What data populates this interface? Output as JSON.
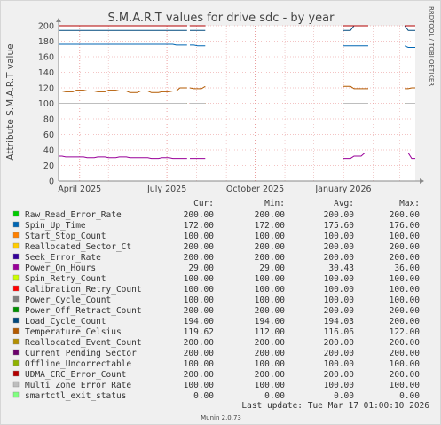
{
  "side_label": "RRDTOOL / TOBI OETIKER",
  "footer": "Munin 2.0.73",
  "last_update": "Last update: Tue Mar 17 01:00:10 2026",
  "colors": {
    "bg": "#f0f0f0",
    "plot": "#ffffff",
    "grid": "#e88a8a",
    "axis": "#8a8a8a"
  },
  "legend_headers": [
    "Cur:",
    "Min:",
    "Avg:",
    "Max:"
  ],
  "chart_data": {
    "type": "line",
    "title": "S.M.A.R.T values for drive sdc - by year",
    "ylabel": "Attribute S.M.A.R.T value",
    "xlabel": "",
    "ylim": [
      0,
      200
    ],
    "yticks": [
      0,
      20,
      40,
      60,
      80,
      100,
      120,
      140,
      160,
      180,
      200
    ],
    "xlim": [
      "2025-03-10",
      "2026-03-17"
    ],
    "xticks": [
      {
        "date": "2025-04-01",
        "label": "April 2025"
      },
      {
        "date": "2025-07-01",
        "label": "July 2025"
      },
      {
        "date": "2025-10-01",
        "label": "October 2025"
      },
      {
        "date": "2026-01-01",
        "label": "January 2026"
      }
    ],
    "data_segments": [
      [
        "2025-03-10",
        "2025-07-22"
      ],
      [
        "2025-07-25",
        "2025-08-10"
      ],
      [
        "2026-01-01",
        "2026-01-27"
      ],
      [
        "2026-03-06",
        "2026-03-17"
      ]
    ],
    "grid": true,
    "series": [
      {
        "name": "Raw_Read_Error_Rate",
        "color": "#00cc00",
        "cur": "200.00",
        "min": "200.00",
        "avg": "200.00",
        "max": "200.00",
        "values": [
          200,
          200
        ]
      },
      {
        "name": "Spin_Up_Time",
        "color": "#0066b3",
        "cur": "172.00",
        "min": "172.00",
        "avg": "175.60",
        "max": "176.00",
        "values": [
          176,
          176,
          176,
          176,
          176,
          176,
          176,
          175,
          174,
          174,
          172
        ]
      },
      {
        "name": "Start_Stop_Count",
        "color": "#ff8000",
        "cur": "100.00",
        "min": "100.00",
        "avg": "100.00",
        "max": "100.00",
        "values": [
          100,
          100
        ]
      },
      {
        "name": "Reallocated_Sector_Ct",
        "color": "#ffcc00",
        "cur": "200.00",
        "min": "200.00",
        "avg": "200.00",
        "max": "200.00",
        "values": [
          200,
          200
        ]
      },
      {
        "name": "Seek_Error_Rate",
        "color": "#330099",
        "cur": "200.00",
        "min": "200.00",
        "avg": "200.00",
        "max": "200.00",
        "values": [
          200,
          200
        ]
      },
      {
        "name": "Power_On_Hours",
        "color": "#990099",
        "cur": "29.00",
        "min": "29.00",
        "avg": "30.43",
        "max": "36.00",
        "values": [
          32,
          31,
          31,
          30,
          31,
          30,
          31,
          30,
          30,
          29,
          30,
          29,
          29,
          29,
          29,
          32,
          36,
          29
        ]
      },
      {
        "name": "Spin_Retry_Count",
        "color": "#ccff00",
        "cur": "100.00",
        "min": "100.00",
        "avg": "100.00",
        "max": "100.00",
        "values": [
          100,
          100
        ]
      },
      {
        "name": "Calibration_Retry_Count",
        "color": "#ff0000",
        "cur": "100.00",
        "min": "100.00",
        "avg": "100.00",
        "max": "100.00",
        "values": [
          100,
          100
        ]
      },
      {
        "name": "Power_Cycle_Count",
        "color": "#808080",
        "cur": "100.00",
        "min": "100.00",
        "avg": "100.00",
        "max": "100.00",
        "values": [
          100,
          100
        ]
      },
      {
        "name": "Power_Off_Retract_Count",
        "color": "#008f00",
        "cur": "200.00",
        "min": "200.00",
        "avg": "200.00",
        "max": "200.00",
        "values": [
          200,
          200
        ]
      },
      {
        "name": "Load_Cycle_Count",
        "color": "#00487d",
        "cur": "194.00",
        "min": "194.00",
        "avg": "194.03",
        "max": "200.00",
        "values": [
          194,
          194,
          194,
          194,
          194,
          194,
          194,
          194,
          194,
          200,
          194
        ]
      },
      {
        "name": "Temperature_Celsius",
        "color": "#b35a00",
        "cur": "119.62",
        "min": "112.00",
        "avg": "116.06",
        "max": "122.00",
        "values": [
          116,
          115,
          117,
          116,
          115,
          117,
          116,
          114,
          116,
          114,
          115,
          116,
          120,
          119,
          122,
          119,
          119,
          120
        ]
      },
      {
        "name": "Reallocated_Event_Count",
        "color": "#b38f00",
        "cur": "200.00",
        "min": "200.00",
        "avg": "200.00",
        "max": "200.00",
        "values": [
          200,
          200
        ]
      },
      {
        "name": "Current_Pending_Sector",
        "color": "#6b006b",
        "cur": "200.00",
        "min": "200.00",
        "avg": "200.00",
        "max": "200.00",
        "values": [
          200,
          200
        ]
      },
      {
        "name": "Offline_Uncorrectable",
        "color": "#8fb300",
        "cur": "100.00",
        "min": "100.00",
        "avg": "100.00",
        "max": "100.00",
        "values": [
          100,
          100
        ]
      },
      {
        "name": "UDMA_CRC_Error_Count",
        "color": "#b30000",
        "cur": "200.00",
        "min": "200.00",
        "avg": "200.00",
        "max": "200.00",
        "values": [
          200,
          200
        ]
      },
      {
        "name": "Multi_Zone_Error_Rate",
        "color": "#bebebe",
        "cur": "100.00",
        "min": "100.00",
        "avg": "100.00",
        "max": "100.00",
        "values": [
          100,
          100
        ]
      },
      {
        "name": "smartctl_exit_status",
        "color": "#80ff80",
        "cur": "0.00",
        "min": "0.00",
        "avg": "0.00",
        "max": "0.00",
        "values": [
          0,
          0
        ]
      }
    ]
  }
}
